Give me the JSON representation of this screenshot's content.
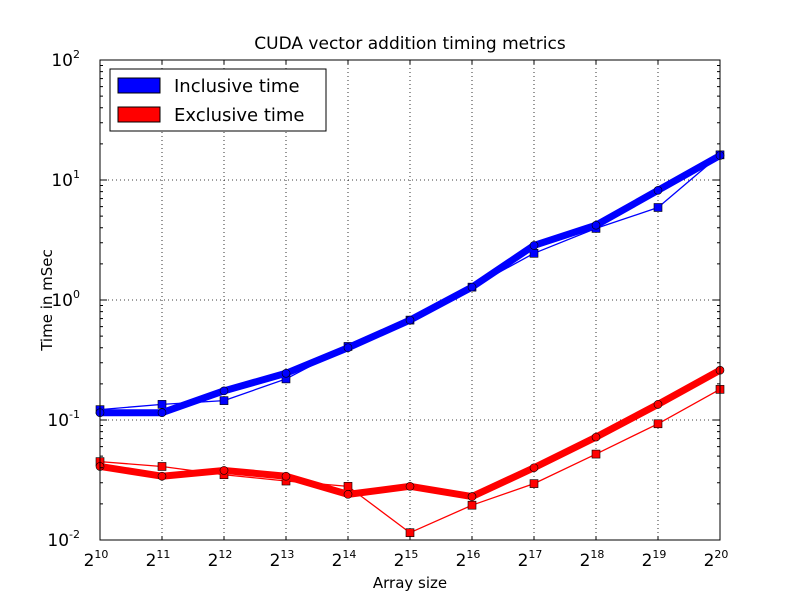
{
  "chart_data": {
    "type": "line",
    "title": "CUDA vector addition timing metrics",
    "xlabel": "Array size",
    "ylabel": "Time in mSec",
    "x_scale": "log2",
    "y_scale": "log10",
    "x_exponents": [
      10,
      11,
      12,
      13,
      14,
      15,
      16,
      17,
      18,
      19,
      20
    ],
    "x_tick_base": "2",
    "y_tick_exponents": [
      -2,
      -1,
      0,
      1,
      2
    ],
    "y_tick_base": "10",
    "y_ylim": [
      0.01,
      100
    ],
    "grid": true,
    "legend_position": "top-left",
    "legend": [
      {
        "label": "Inclusive time",
        "color": "#0000ff"
      },
      {
        "label": "Exclusive time",
        "color": "#ff0000"
      }
    ],
    "series": [
      {
        "name": "Inclusive time",
        "style": "thick",
        "color": "#0000ff",
        "marker": "circle",
        "values": [
          0.115,
          0.115,
          0.175,
          0.245,
          0.4,
          0.68,
          1.28,
          2.85,
          4.2,
          8.2,
          16.0
        ]
      },
      {
        "name": "Inclusive time",
        "style": "thin",
        "color": "#0000ff",
        "marker": "square",
        "values": [
          0.122,
          0.135,
          0.145,
          0.22,
          0.41,
          0.68,
          1.28,
          2.45,
          3.95,
          5.9,
          16.2
        ]
      },
      {
        "name": "Exclusive time",
        "style": "thick",
        "color": "#ff0000",
        "marker": "circle",
        "values": [
          0.041,
          0.034,
          0.038,
          0.034,
          0.024,
          0.028,
          0.023,
          0.04,
          0.072,
          0.135,
          0.26
        ]
      },
      {
        "name": "Exclusive time",
        "style": "thin",
        "color": "#ff0000",
        "marker": "square",
        "values": [
          0.045,
          0.041,
          0.035,
          0.031,
          0.028,
          0.0115,
          0.0195,
          0.0295,
          0.052,
          0.093,
          0.18
        ]
      }
    ]
  }
}
